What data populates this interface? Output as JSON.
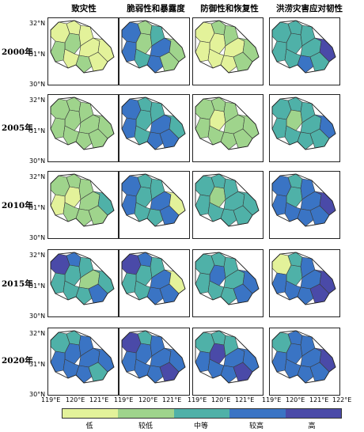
{
  "columns": [
    "致灾性",
    "脆弱性和暴露度",
    "防御性和恢复性",
    "洪涝灾害应对韧性"
  ],
  "rows": [
    "2000年",
    "2005年",
    "2010年",
    "2015年",
    "2020年"
  ],
  "lat_labels": [
    "32°N",
    "31°N",
    "30°N"
  ],
  "lon_labels": [
    "119°E",
    "120°E",
    "121°E",
    "122°E"
  ],
  "legend": {
    "labels": [
      "低",
      "较低",
      "中等",
      "较高",
      "高"
    ],
    "colors": [
      "#e3f29a",
      "#9fd48c",
      "#4fb1a8",
      "#3a74c4",
      "#4a4aa8"
    ]
  },
  "levels": [
    [
      [
        0,
        0,
        1,
        1,
        0,
        0,
        0,
        1,
        0,
        0
      ],
      [
        3,
        1,
        1,
        3,
        2,
        3,
        2,
        3,
        1,
        1
      ],
      [
        0,
        1,
        0,
        0,
        1,
        0,
        0,
        0,
        1,
        1
      ],
      [
        2,
        2,
        2,
        2,
        2,
        2,
        2,
        3,
        4,
        2
      ]
    ],
    [
      [
        1,
        1,
        1,
        1,
        1,
        1,
        1,
        1,
        1,
        1
      ],
      [
        3,
        2,
        2,
        3,
        2,
        3,
        2,
        3,
        2,
        3
      ],
      [
        1,
        1,
        0,
        1,
        1,
        1,
        1,
        1,
        1,
        1
      ],
      [
        2,
        2,
        1,
        2,
        2,
        2,
        2,
        2,
        3,
        2
      ]
    ],
    [
      [
        1,
        1,
        0,
        0,
        1,
        1,
        1,
        1,
        2,
        1
      ],
      [
        3,
        2,
        2,
        3,
        2,
        3,
        2,
        2,
        0,
        3
      ],
      [
        2,
        2,
        1,
        2,
        2,
        2,
        2,
        2,
        2,
        2
      ],
      [
        3,
        2,
        2,
        3,
        3,
        3,
        3,
        3,
        4,
        3
      ]
    ],
    [
      [
        4,
        3,
        2,
        2,
        2,
        1,
        2,
        2,
        2,
        3
      ],
      [
        4,
        3,
        2,
        2,
        2,
        3,
        2,
        3,
        0,
        3
      ],
      [
        2,
        2,
        3,
        2,
        2,
        2,
        2,
        2,
        3,
        3
      ],
      [
        0,
        2,
        2,
        3,
        3,
        3,
        3,
        3,
        4,
        4
      ]
    ],
    [
      [
        2,
        2,
        3,
        3,
        3,
        3,
        3,
        3,
        3,
        2
      ],
      [
        4,
        2,
        3,
        3,
        3,
        3,
        3,
        3,
        3,
        4
      ],
      [
        2,
        2,
        4,
        3,
        2,
        3,
        3,
        3,
        3,
        4
      ],
      [
        2,
        3,
        3,
        3,
        3,
        3,
        3,
        3,
        4,
        3
      ]
    ]
  ]
}
